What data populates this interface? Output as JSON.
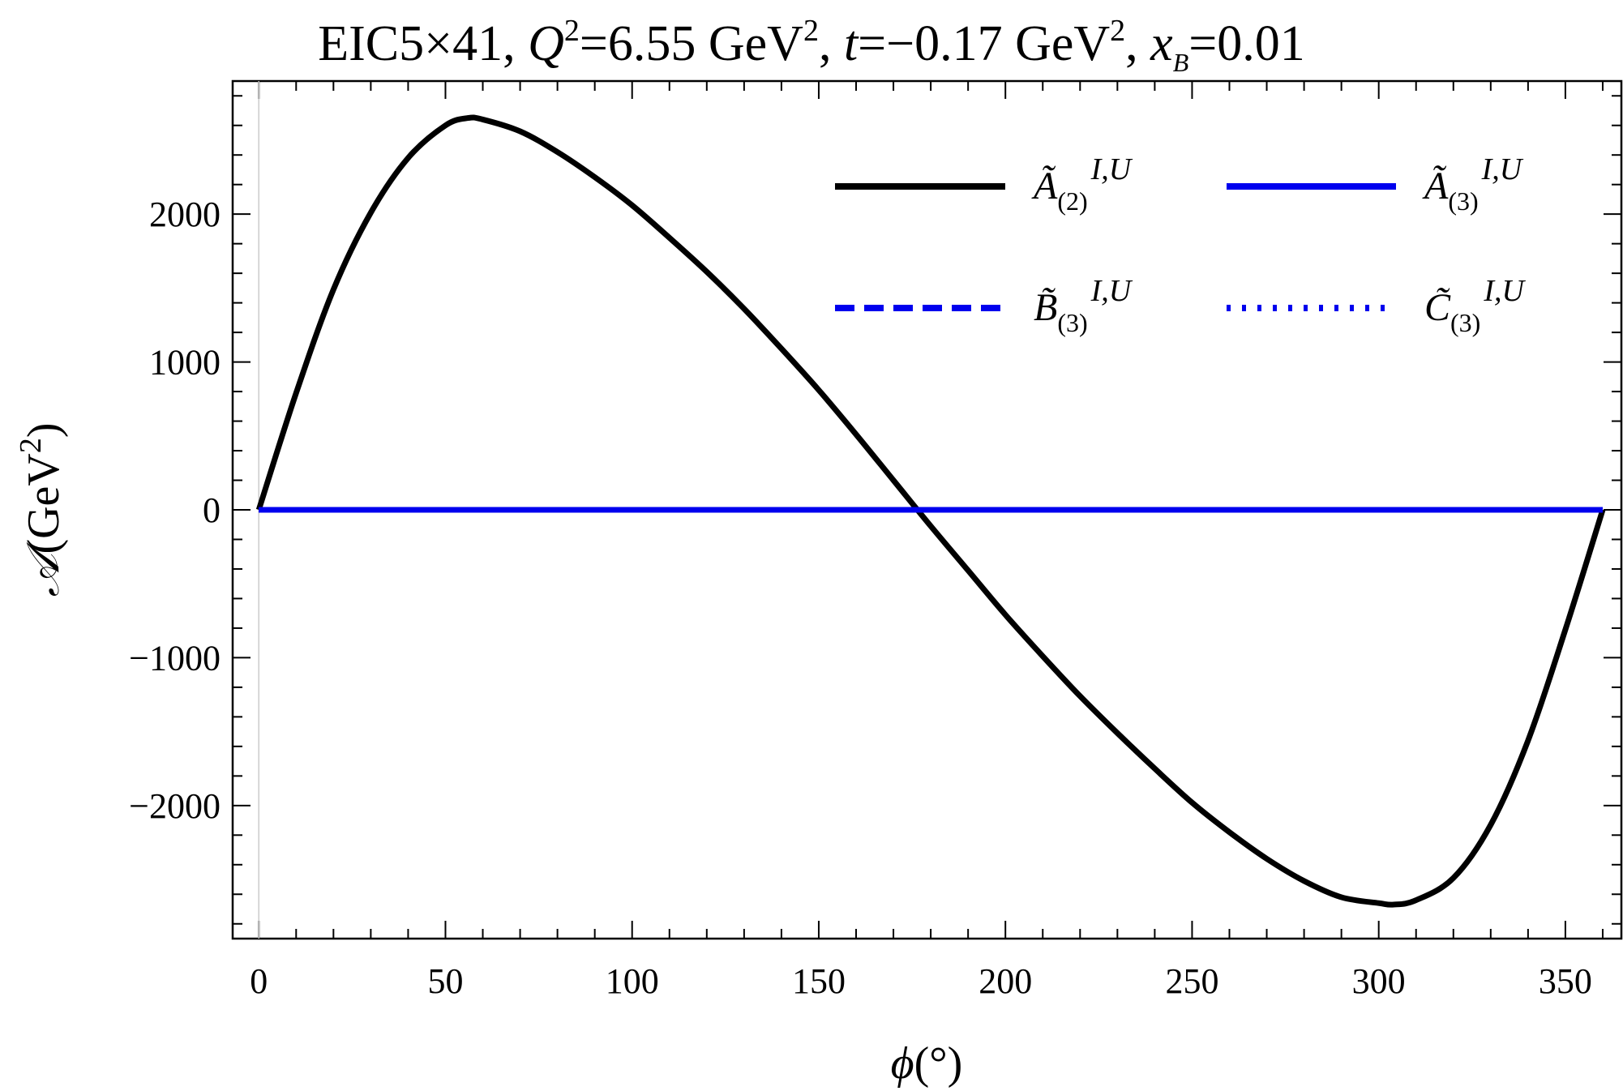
{
  "chart_data": {
    "type": "line",
    "title": {
      "prefix": "EIC5×41, ",
      "q2_symbol": "Q",
      "q2_exp": "2",
      "q2_value": "=6.55 GeV",
      "q2_unit_exp": "2",
      "t_prefix": ", ",
      "t_symbol": "t",
      "t_value": "=−0.17 GeV",
      "t_unit_exp": "2",
      "xb_prefix": ", ",
      "xb_symbol": "x",
      "xb_sub": "B",
      "xb_value": "=0.01"
    },
    "xlabel": {
      "symbol": "ϕ",
      "rest": "(°)"
    },
    "ylabel": {
      "symbol": "𝒜",
      "rest": "(GeV",
      "exp": "2",
      "close": ")"
    },
    "xlim": [
      -7,
      365
    ],
    "ylim": [
      -2900,
      2900
    ],
    "xticks": [
      0,
      50,
      100,
      150,
      200,
      250,
      300,
      350
    ],
    "xtick_labels": [
      "0",
      "50",
      "100",
      "150",
      "200",
      "250",
      "300",
      "350"
    ],
    "yticks": [
      -2000,
      -1000,
      0,
      1000,
      2000
    ],
    "ytick_labels": [
      "−2000",
      "−1000",
      "0",
      "1000",
      "2000"
    ],
    "grid": false,
    "legend_position": "top-right",
    "series": [
      {
        "name": "Ã(2)^I,U",
        "legend": {
          "base": "Ã",
          "sub": "(2)",
          "sup": "I,U"
        },
        "color": "#000000",
        "style": "solid",
        "x": [
          0,
          10,
          20,
          30,
          40,
          50,
          56,
          60,
          70,
          80,
          90,
          100,
          110,
          120,
          130,
          140,
          150,
          160,
          170,
          180,
          190,
          200,
          210,
          220,
          230,
          240,
          250,
          260,
          270,
          280,
          290,
          300,
          304,
          310,
          320,
          330,
          340,
          350,
          360
        ],
        "y": [
          0,
          790,
          1490,
          2010,
          2380,
          2600,
          2650,
          2640,
          2560,
          2420,
          2250,
          2060,
          1840,
          1610,
          1360,
          1090,
          810,
          510,
          200,
          -110,
          -410,
          -710,
          -990,
          -1260,
          -1510,
          -1750,
          -1980,
          -2180,
          -2360,
          -2510,
          -2620,
          -2660,
          -2670,
          -2640,
          -2490,
          -2130,
          -1560,
          -810,
          0
        ]
      },
      {
        "name": "Ã(3)^I,U",
        "legend": {
          "base": "Ã",
          "sub": "(3)",
          "sup": "I,U"
        },
        "color": "#0000ee",
        "style": "solid",
        "x": [
          0,
          360
        ],
        "y": [
          0,
          0
        ]
      },
      {
        "name": "B̃(3)^I,U",
        "legend": {
          "base": "B̃",
          "sub": "(3)",
          "sup": "I,U"
        },
        "color": "#0000ee",
        "style": "dashed",
        "x": [
          0,
          360
        ],
        "y": [
          0,
          0
        ]
      },
      {
        "name": "C̃(3)^I,U",
        "legend": {
          "base": "C̃",
          "sub": "(3)",
          "sup": "I,U"
        },
        "color": "#0000ee",
        "style": "dotted",
        "x": [
          0,
          360
        ],
        "y": [
          0,
          0
        ]
      }
    ]
  }
}
